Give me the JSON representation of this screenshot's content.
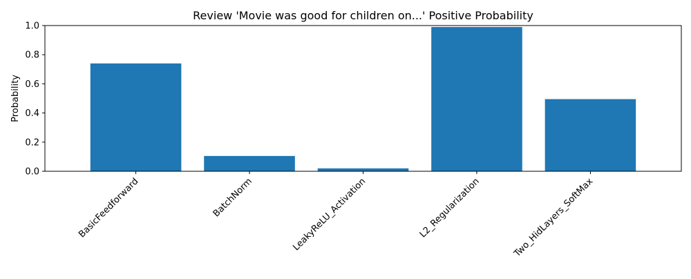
{
  "chart_data": {
    "type": "bar",
    "title": "Review 'Movie was good for children on...' Positive Probability",
    "xlabel": "",
    "ylabel": "Probability",
    "categories": [
      "BasicFeedforward",
      "BatchNorm",
      "LeakyReLU_Activation",
      "L2_Regularization",
      "Two_HidLayers_SoftMax"
    ],
    "values": [
      0.74,
      0.105,
      0.02,
      0.99,
      0.495
    ],
    "ylim": [
      0,
      1.0
    ],
    "yticks": [
      "0.0",
      "0.2",
      "0.4",
      "0.6",
      "0.8",
      "1.0"
    ],
    "bar_color": "#1f77b4",
    "grid": false,
    "legend": "none"
  }
}
